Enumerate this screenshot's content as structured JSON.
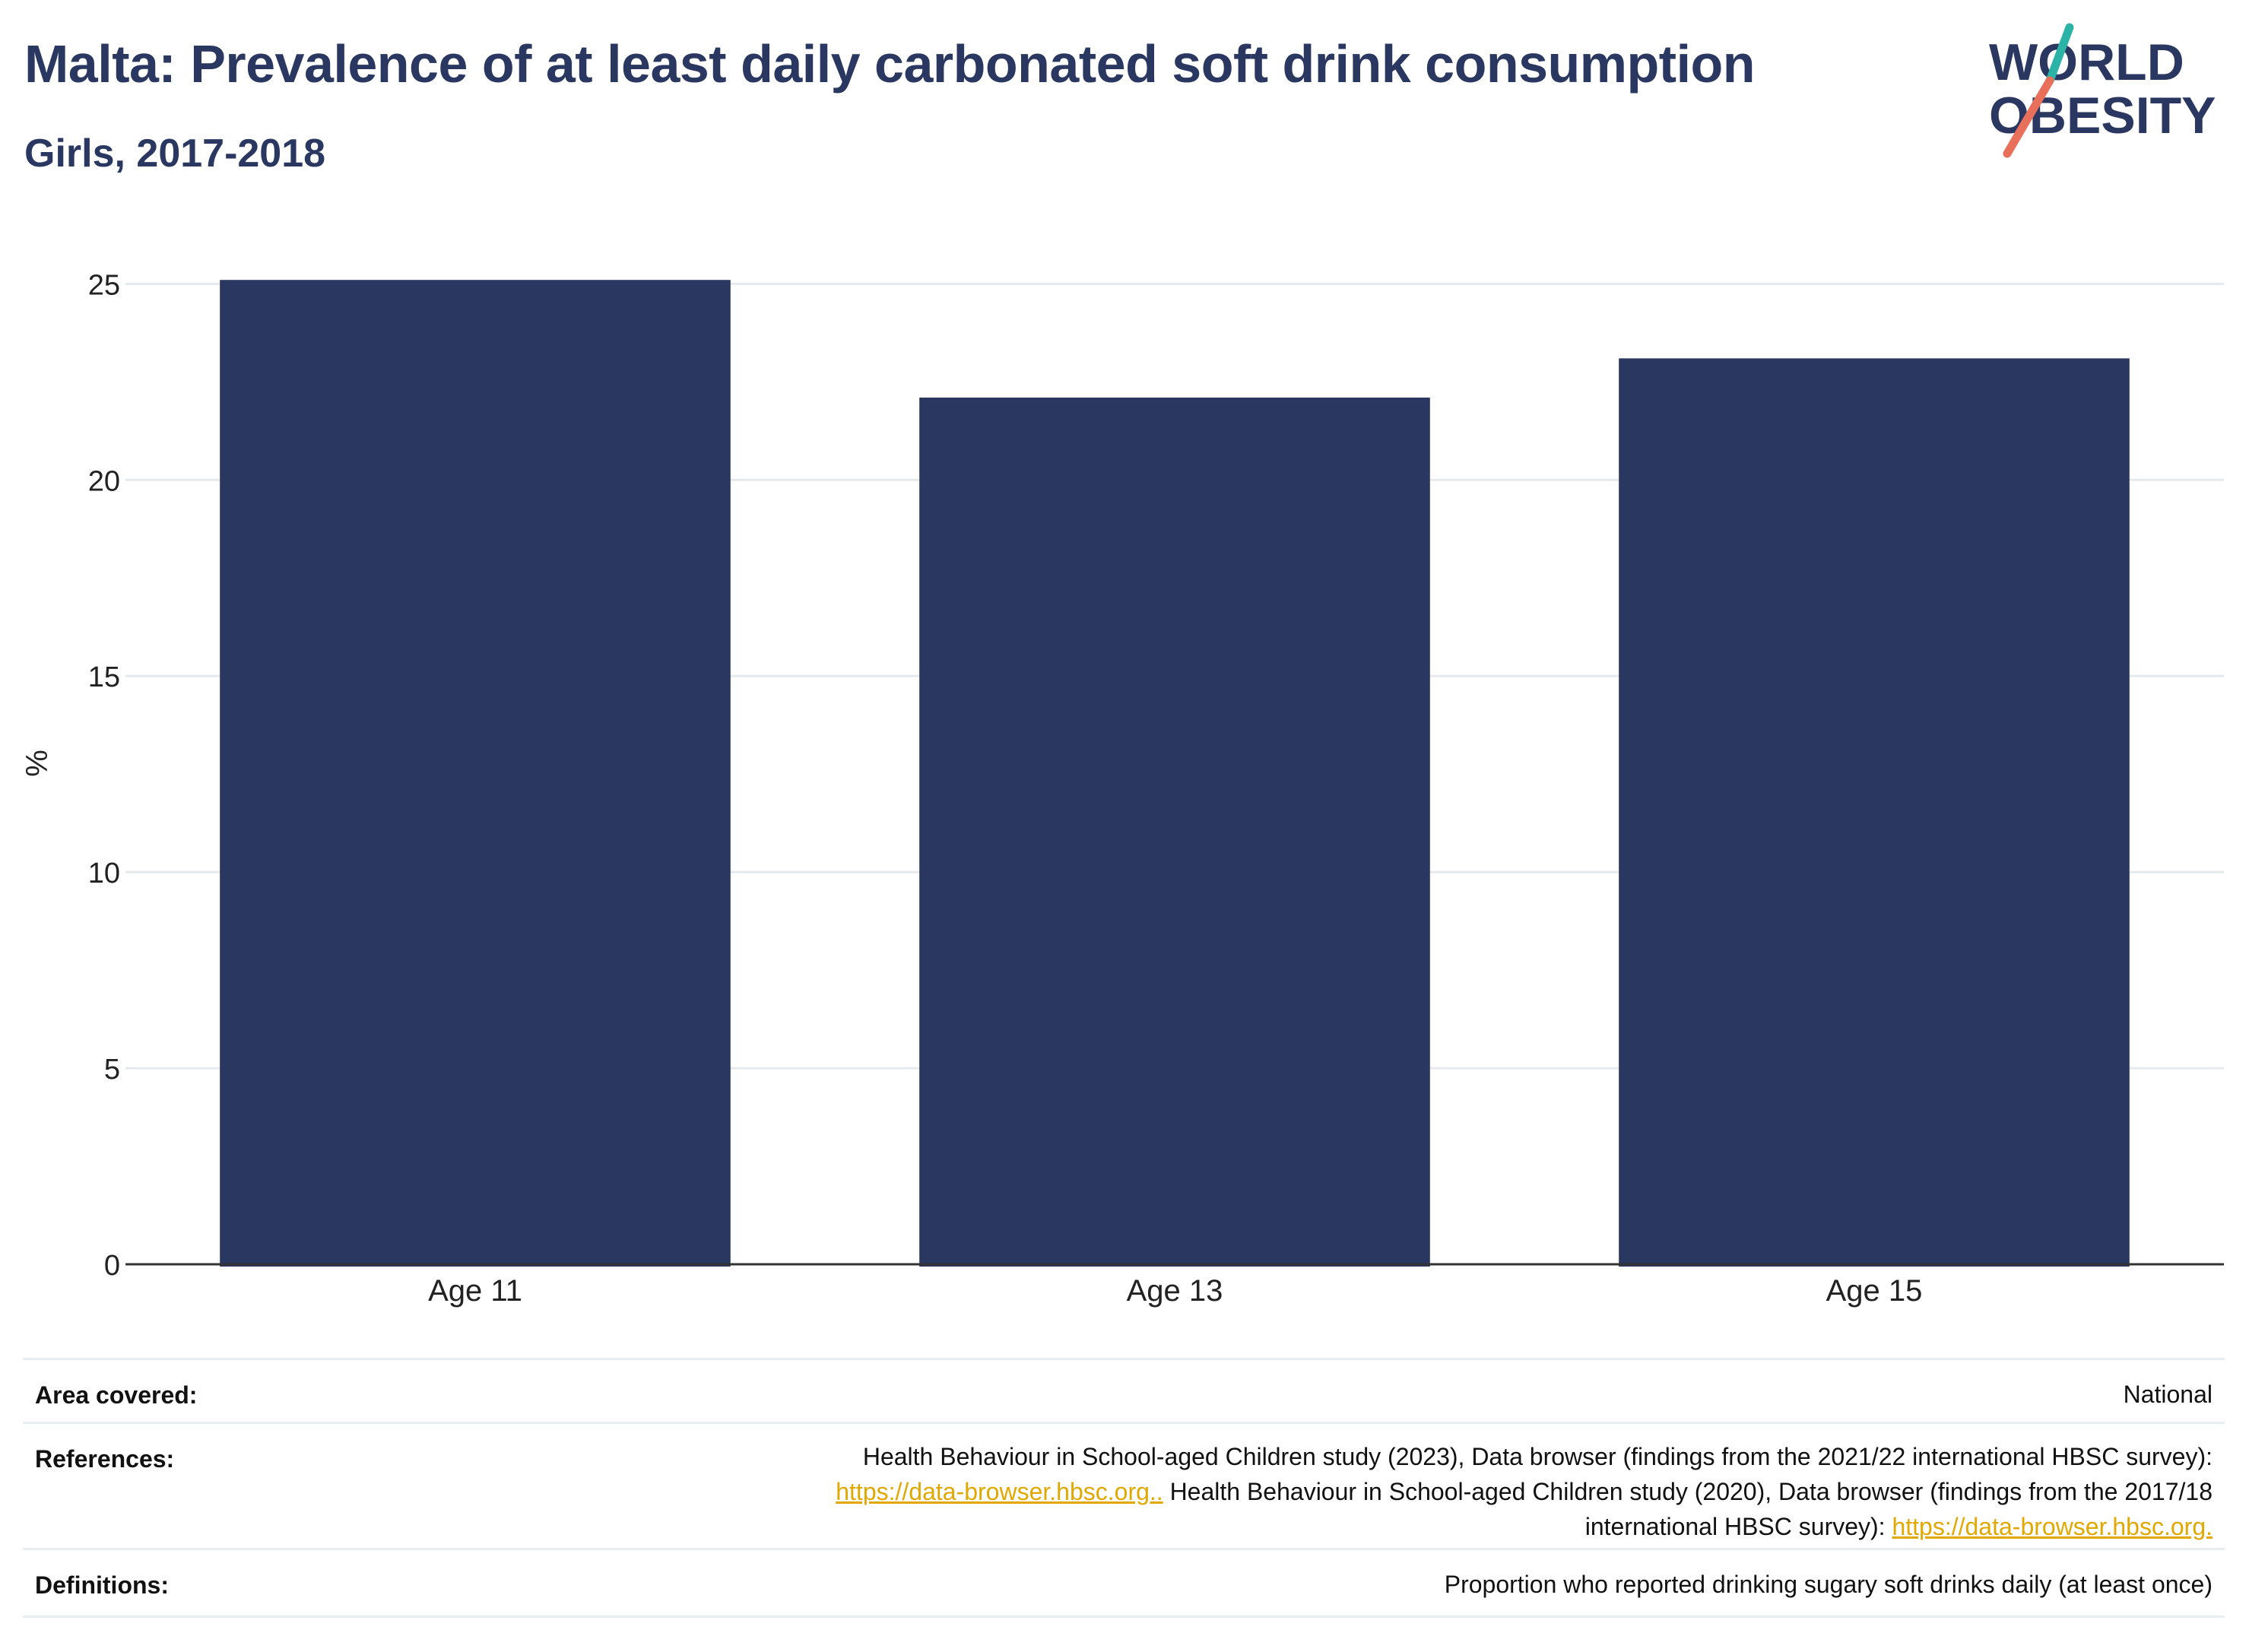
{
  "title": "Malta: Prevalence of at least daily carbonated soft drink consumption",
  "subtitle": "Girls, 2017-2018",
  "logo": {
    "line1": "WORLD",
    "line2": "OBESITY",
    "text_color": "#2a3761",
    "slash_top_color": "#2bb3a8",
    "slash_bottom_color": "#e8705a"
  },
  "chart_data": {
    "type": "bar",
    "categories": [
      "Age 11",
      "Age 13",
      "Age 15"
    ],
    "values": [
      25.1,
      22.1,
      23.1
    ],
    "ylabel": "%",
    "xlabel": "",
    "ylim": [
      0,
      25
    ],
    "yticks": [
      0,
      5,
      10,
      15,
      20,
      25
    ],
    "grid": true,
    "bar_color": "#2a3761"
  },
  "footer": {
    "area": {
      "label": "Area covered:",
      "value": "National"
    },
    "references": {
      "label": "References:",
      "line1": "Health Behaviour in School-aged Children study (2023), Data browser (findings from the 2021/22 international HBSC survey):",
      "link1": "https://data-browser.hbsc.org..",
      "line2_text": " Health Behaviour in School-aged Children study (2020), Data browser (findings from the 2017/18",
      "line3_text": "international HBSC survey): ",
      "link2": "https://data-browser.hbsc.org."
    },
    "definitions": {
      "label": "Definitions:",
      "value": "Proportion who reported drinking sugary soft drinks daily (at least once)"
    }
  }
}
